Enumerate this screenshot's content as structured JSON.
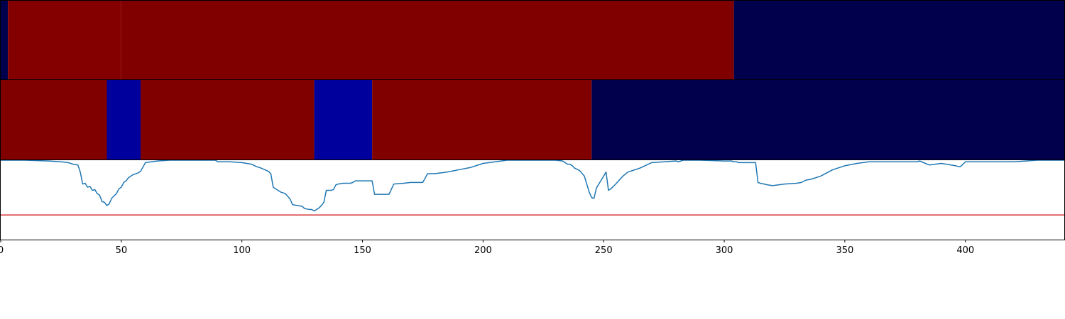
{
  "chart_data": [
    {
      "type": "heatmap",
      "xlim": [
        0,
        441
      ],
      "segments": [
        {
          "start": 0,
          "end": 3,
          "color": "#00004c"
        },
        {
          "start": 3,
          "end": 50,
          "color": "#840000"
        },
        {
          "start": 50,
          "end": 304,
          "color": "#800000"
        },
        {
          "start": 304,
          "end": 441,
          "color": "#00004c"
        }
      ]
    },
    {
      "type": "heatmap",
      "xlim": [
        0,
        441
      ],
      "segments": [
        {
          "start": 0,
          "end": 44,
          "color": "#800000"
        },
        {
          "start": 44,
          "end": 58,
          "color": "#00009c"
        },
        {
          "start": 58,
          "end": 130,
          "color": "#800000"
        },
        {
          "start": 130,
          "end": 154,
          "color": "#00009c"
        },
        {
          "start": 154,
          "end": 245,
          "color": "#800000"
        },
        {
          "start": 245,
          "end": 441,
          "color": "#00004c"
        }
      ]
    },
    {
      "type": "line",
      "xlim": [
        0,
        441
      ],
      "ylim": [
        0,
        1
      ],
      "xticks": [
        0,
        50,
        100,
        150,
        200,
        250,
        300,
        350,
        400
      ],
      "xtick_labels": [
        "0",
        "50",
        "100",
        "150",
        "200",
        "250",
        "300",
        "350",
        "400"
      ],
      "threshold": 0.31,
      "line_color": "#1f77b4",
      "threshold_color": "#d62728",
      "series": [
        {
          "x": [
            0,
            10,
            20,
            25,
            28,
            30,
            32,
            33,
            34,
            35,
            36,
            37,
            38,
            39,
            40,
            41,
            42,
            43,
            44,
            45,
            46,
            47,
            48,
            49,
            50,
            51,
            52,
            53,
            55,
            57,
            58,
            60,
            65,
            70,
            80,
            89,
            90,
            95,
            100,
            104,
            106,
            108,
            111,
            112,
            113,
            114,
            116,
            118,
            120,
            121,
            123,
            125,
            126,
            128,
            129,
            130,
            131,
            132,
            133,
            134,
            135,
            137,
            138,
            139,
            140,
            142,
            145,
            146,
            147,
            150,
            153,
            154,
            155,
            157,
            160,
            161,
            163,
            167,
            170,
            172,
            175,
            177,
            180,
            185,
            190,
            195,
            200,
            210,
            220,
            230,
            233,
            234,
            235,
            236,
            237,
            238,
            240,
            242,
            244,
            245,
            246,
            247,
            248,
            249,
            250,
            251,
            252,
            253,
            255,
            258,
            260,
            265,
            270,
            280,
            281,
            282,
            283,
            285,
            290,
            300,
            303,
            304,
            305,
            306,
            310,
            312,
            313,
            314,
            315,
            318,
            320,
            325,
            330,
            332,
            334,
            336,
            340,
            345,
            350,
            355,
            360,
            370,
            380,
            381,
            385,
            390,
            396,
            397,
            398,
            400,
            410,
            420,
            425,
            430,
            441
          ],
          "y": [
            1.0,
            1.0,
            0.99,
            0.98,
            0.97,
            0.95,
            0.94,
            0.85,
            0.7,
            0.71,
            0.66,
            0.67,
            0.62,
            0.63,
            0.58,
            0.56,
            0.48,
            0.47,
            0.43,
            0.45,
            0.52,
            0.55,
            0.58,
            0.64,
            0.66,
            0.72,
            0.74,
            0.78,
            0.82,
            0.84,
            0.86,
            0.97,
            0.99,
            1.0,
            1.0,
            1.0,
            0.98,
            0.98,
            0.97,
            0.95,
            0.92,
            0.9,
            0.86,
            0.83,
            0.66,
            0.64,
            0.6,
            0.58,
            0.51,
            0.44,
            0.43,
            0.42,
            0.39,
            0.38,
            0.38,
            0.36,
            0.38,
            0.4,
            0.43,
            0.47,
            0.62,
            0.62,
            0.63,
            0.69,
            0.7,
            0.71,
            0.71,
            0.72,
            0.74,
            0.74,
            0.74,
            0.74,
            0.57,
            0.57,
            0.57,
            0.57,
            0.7,
            0.71,
            0.72,
            0.72,
            0.72,
            0.83,
            0.83,
            0.85,
            0.88,
            0.91,
            0.96,
            1.0,
            1.0,
            1.0,
            0.99,
            0.97,
            0.95,
            0.95,
            0.93,
            0.9,
            0.87,
            0.8,
            0.6,
            0.53,
            0.52,
            0.65,
            0.7,
            0.75,
            0.8,
            0.85,
            0.62,
            0.64,
            0.7,
            0.8,
            0.85,
            0.9,
            0.97,
            0.99,
            0.98,
            0.99,
            1.0,
            1.0,
            1.0,
            0.99,
            0.99,
            0.98,
            0.98,
            0.97,
            0.97,
            0.97,
            0.97,
            0.72,
            0.71,
            0.69,
            0.68,
            0.7,
            0.71,
            0.72,
            0.75,
            0.76,
            0.8,
            0.88,
            0.93,
            0.96,
            0.98,
            0.98,
            0.98,
            0.99,
            0.94,
            0.96,
            0.93,
            0.92,
            0.92,
            0.98,
            0.98,
            0.98,
            0.99,
            1.0,
            1.0
          ]
        }
      ]
    }
  ]
}
